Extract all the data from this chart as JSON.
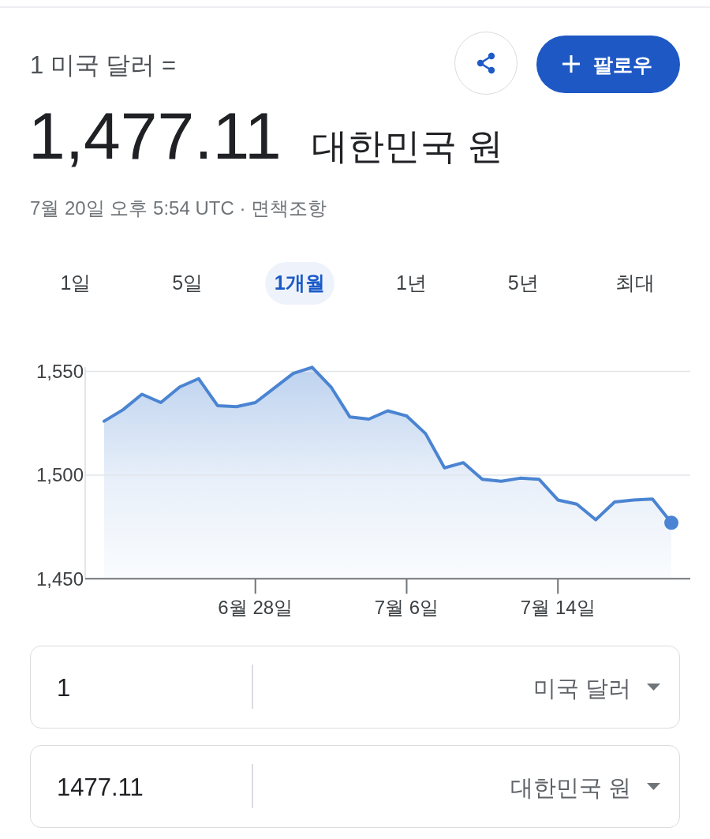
{
  "chart_data": {
    "type": "area",
    "title": "1 미국 달러 =",
    "subtitle": "1,477.11",
    "annotations": [
      "대한민국 원",
      "7월 20일 오후 5:54 UTC · 면책조항",
      "팔로우",
      "1일",
      "5일",
      "1개월",
      "1년",
      "5년",
      "최대",
      "1",
      "미국 달러",
      "1477.11",
      "대한민국 원"
    ],
    "x": [
      "--06-20",
      "--06-21",
      "--06-22",
      "--06-23",
      "--06-24",
      "--06-25",
      "--06-26",
      "--06-27",
      "--06-28",
      "--06-29",
      "--06-30",
      "--07-01",
      "--07-02",
      "--07-03",
      "--07-04",
      "--07-05",
      "--07-06",
      "--07-07",
      "--07-08",
      "--07-09",
      "--07-10",
      "--07-11",
      "--07-12",
      "--07-13",
      "--07-14",
      "--07-15",
      "--07-16",
      "--07-17",
      "--07-18",
      "--07-19",
      "--07-20"
    ],
    "xlim": [
      "--06-19",
      "--07-21"
    ],
    "xticks": [
      {
        "value": "--06-28",
        "label": "6월 28일"
      },
      {
        "value": "--07-06",
        "label": "7월 6일"
      },
      {
        "value": "--07-14",
        "label": "7월 14일"
      }
    ],
    "ylim": [
      1450,
      1552
    ],
    "yticks": [
      {
        "value": 1450,
        "label": "1,450"
      },
      {
        "value": 1500,
        "label": "1,500"
      },
      {
        "value": 1550,
        "label": "1,550"
      }
    ],
    "grid": "y",
    "series": [
      {
        "color": "#4a84d2",
        "values": [
          1526,
          1531.5,
          1539,
          1535,
          1542.5,
          1546.5,
          1533.5,
          1533,
          1535,
          1542,
          1549,
          1552,
          1542.5,
          1528,
          1527,
          1531,
          1528.5,
          1520,
          1503.5,
          1506,
          1498,
          1497,
          1498.5,
          1498,
          1488,
          1486,
          1478.5,
          1487,
          1488,
          1488.5,
          1477
        ]
      },
      {
        "type": "scatter",
        "marker": "circle",
        "x": [
          "--07-20"
        ],
        "color": "#4a84d2",
        "values": [
          1477
        ]
      }
    ]
  }
}
